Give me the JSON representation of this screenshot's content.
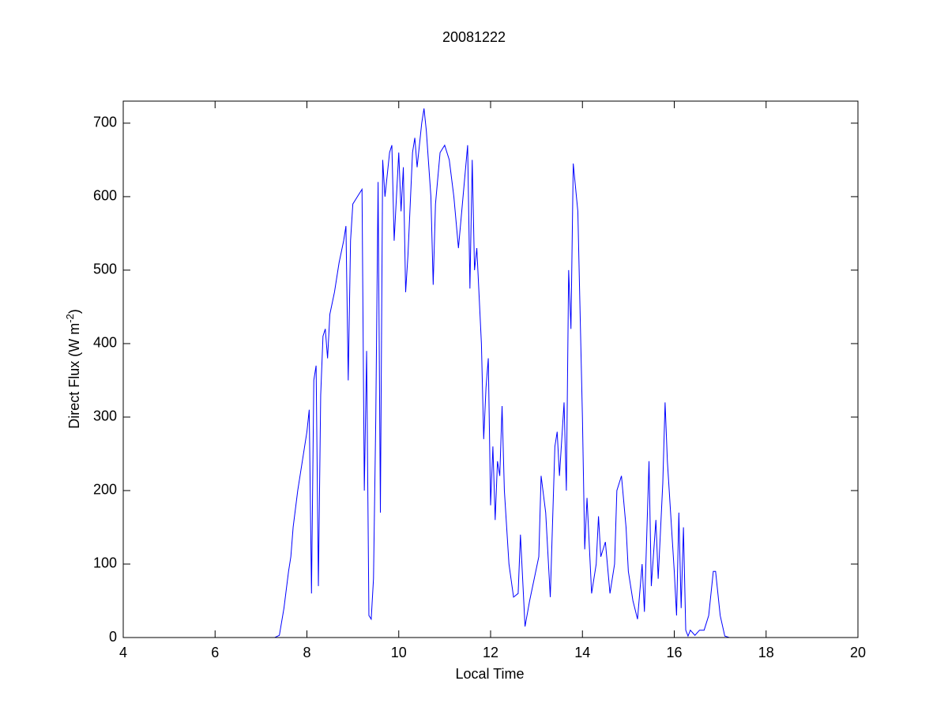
{
  "chart_data": {
    "type": "line",
    "title": "20081222",
    "xlabel": "Local Time",
    "ylabel": [
      "Direct Flux (W m",
      "-2",
      ")"
    ],
    "xlim": [
      4,
      20
    ],
    "ylim": [
      0,
      730
    ],
    "xticks": [
      4,
      6,
      8,
      10,
      12,
      14,
      16,
      18,
      20
    ],
    "yticks": [
      0,
      100,
      200,
      300,
      400,
      500,
      600,
      700
    ],
    "grid": false,
    "series": [
      {
        "color": "#0000ff",
        "x": [
          4,
          7.3,
          7.4,
          7.5,
          7.6,
          7.65,
          7.7,
          7.8,
          7.9,
          8.0,
          8.05,
          8.1,
          8.15,
          8.2,
          8.25,
          8.3,
          8.35,
          8.4,
          8.45,
          8.5,
          8.6,
          8.7,
          8.8,
          8.85,
          8.9,
          8.95,
          9.0,
          9.1,
          9.2,
          9.25,
          9.3,
          9.35,
          9.4,
          9.45,
          9.5,
          9.55,
          9.6,
          9.65,
          9.7,
          9.8,
          9.85,
          9.9,
          10.0,
          10.05,
          10.1,
          10.15,
          10.2,
          10.3,
          10.35,
          10.4,
          10.5,
          10.55,
          10.6,
          10.7,
          10.75,
          10.8,
          10.9,
          11.0,
          11.1,
          11.2,
          11.3,
          11.4,
          11.5,
          11.55,
          11.6,
          11.65,
          11.7,
          11.8,
          11.85,
          11.9,
          11.95,
          12.0,
          12.05,
          12.1,
          12.15,
          12.2,
          12.25,
          12.3,
          12.4,
          12.5,
          12.6,
          12.65,
          12.75,
          12.85,
          12.95,
          13.05,
          13.1,
          13.2,
          13.3,
          13.4,
          13.45,
          13.5,
          13.6,
          13.65,
          13.7,
          13.75,
          13.8,
          13.9,
          14.0,
          14.05,
          14.1,
          14.2,
          14.3,
          14.35,
          14.4,
          14.5,
          14.6,
          14.7,
          14.75,
          14.85,
          14.95,
          15.0,
          15.1,
          15.2,
          15.3,
          15.35,
          15.45,
          15.5,
          15.6,
          15.65,
          15.75,
          15.8,
          15.85,
          15.95,
          16.0,
          16.05,
          16.1,
          16.15,
          16.2,
          16.25,
          16.3,
          16.35,
          16.45,
          16.55,
          16.65,
          16.75,
          16.85,
          16.9,
          16.95,
          17.0,
          17.1,
          17.2,
          20
        ],
        "values": [
          0,
          0,
          3,
          40,
          90,
          110,
          150,
          200,
          240,
          280,
          310,
          60,
          350,
          370,
          70,
          330,
          410,
          420,
          380,
          440,
          470,
          510,
          540,
          560,
          350,
          540,
          590,
          600,
          610,
          200,
          390,
          30,
          25,
          80,
          300,
          620,
          170,
          650,
          600,
          660,
          670,
          540,
          660,
          580,
          640,
          470,
          520,
          660,
          680,
          640,
          700,
          720,
          690,
          600,
          480,
          590,
          660,
          670,
          650,
          600,
          530,
          600,
          670,
          475,
          650,
          500,
          530,
          400,
          270,
          340,
          380,
          180,
          260,
          160,
          240,
          220,
          315,
          200,
          100,
          55,
          60,
          140,
          15,
          50,
          80,
          110,
          220,
          170,
          55,
          260,
          280,
          220,
          320,
          200,
          500,
          420,
          645,
          580,
          300,
          120,
          190,
          60,
          100,
          165,
          110,
          130,
          60,
          100,
          200,
          220,
          150,
          90,
          50,
          25,
          100,
          35,
          240,
          70,
          160,
          80,
          210,
          320,
          240,
          140,
          90,
          30,
          170,
          40,
          150,
          10,
          2,
          10,
          3,
          10,
          10,
          30,
          90,
          90,
          60,
          30,
          2,
          0,
          0
        ]
      }
    ]
  }
}
